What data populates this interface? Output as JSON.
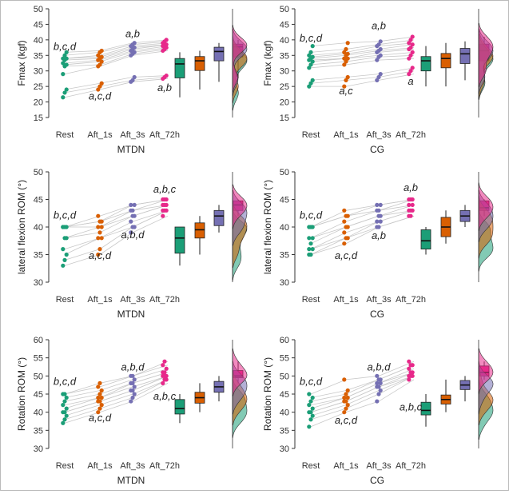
{
  "colors": {
    "Rest": "#1b9e77",
    "Aft_1s": "#d95f02",
    "Aft_3s": "#7570b3",
    "Aft_72h": "#e7298a",
    "pair_line": "#c8c8c8",
    "axis": "#333333"
  },
  "chart_data": [
    {
      "type": "scatter",
      "group": "MTDN",
      "xlabel": "MTDN",
      "ylabel": "Fmax (kgf)",
      "ylim": [
        15,
        50
      ],
      "yticks": [
        15,
        20,
        25,
        30,
        35,
        40,
        45,
        50
      ],
      "categories": [
        "Rest",
        "Aft_1s",
        "Aft_3s",
        "Aft_72h"
      ],
      "annotations": [
        {
          "text": "b,c,d",
          "category": "Rest",
          "y": 36.8
        },
        {
          "text": "a,c,d",
          "category": "Aft_1s",
          "y": 20.8
        },
        {
          "text": "a,b",
          "category": "Aft_3s",
          "y": 40.8
        },
        {
          "text": "a,b",
          "category": "Aft_72h",
          "y": 23.5
        }
      ],
      "series": [
        {
          "name": "Rest",
          "values": [
            21.5,
            23,
            24,
            29,
            31.5,
            32,
            32.5,
            33.5,
            34,
            34,
            35,
            36
          ]
        },
        {
          "name": "Aft_1s",
          "values": [
            24,
            25,
            26,
            31.5,
            32,
            33,
            33.5,
            34,
            34.5,
            35,
            36,
            36.5
          ]
        },
        {
          "name": "Aft_3s",
          "values": [
            26.5,
            27,
            28,
            35,
            35.5,
            36,
            36.5,
            37,
            37.5,
            38,
            38.5,
            39
          ]
        },
        {
          "name": "Aft_72h",
          "values": [
            27.5,
            28,
            28.5,
            36.5,
            37,
            37.5,
            38,
            38.5,
            38.5,
            39,
            39.5,
            40
          ]
        }
      ]
    },
    {
      "type": "scatter",
      "group": "CG",
      "xlabel": "CG",
      "ylabel": "Fmax (kgf)",
      "ylim": [
        15,
        50
      ],
      "yticks": [
        15,
        20,
        25,
        30,
        35,
        40,
        45,
        50
      ],
      "categories": [
        "Rest",
        "Aft_1s",
        "Aft_3s",
        "Aft_72h"
      ],
      "annotations": [
        {
          "text": "b,c,d",
          "category": "Rest",
          "y": 39.5
        },
        {
          "text": "a,c",
          "category": "Aft_1s",
          "y": 22.5
        },
        {
          "text": "a,b",
          "category": "Aft_3s",
          "y": 43.5
        },
        {
          "text": "a",
          "category": "Aft_72h",
          "y": 25.5
        }
      ],
      "series": [
        {
          "name": "Rest",
          "values": [
            25,
            26,
            27,
            31,
            32,
            33,
            33.5,
            34,
            34.5,
            35,
            36,
            38
          ]
        },
        {
          "name": "Aft_1s",
          "values": [
            25,
            27,
            28,
            32,
            33,
            34,
            34,
            35,
            35.5,
            36,
            37,
            39
          ]
        },
        {
          "name": "Aft_3s",
          "values": [
            27,
            28,
            29,
            33.5,
            34.5,
            35,
            36,
            36.5,
            37,
            38,
            38.5,
            39.5
          ]
        },
        {
          "name": "Aft_72h",
          "values": [
            29,
            30,
            31,
            34,
            35,
            36,
            37,
            37.5,
            38.5,
            39,
            40,
            41
          ]
        }
      ]
    },
    {
      "type": "scatter",
      "group": "MTDN",
      "xlabel": "MTDN",
      "ylabel": "lateral flexion ROM (°)",
      "ylim": [
        30,
        50
      ],
      "yticks": [
        30,
        35,
        40,
        45,
        50
      ],
      "categories": [
        "Rest",
        "Aft_1s",
        "Aft_3s",
        "Aft_72h"
      ],
      "annotations": [
        {
          "text": "b,c,d",
          "category": "Rest",
          "y": 41.5
        },
        {
          "text": "a,c,d",
          "category": "Aft_1s",
          "y": 34.2
        },
        {
          "text": "a,b,d",
          "category": "Aft_3s",
          "y": 38
        },
        {
          "text": "a,b,c",
          "category": "Aft_72h",
          "y": 46.2
        }
      ],
      "series": [
        {
          "name": "Rest",
          "values": [
            33,
            34,
            35,
            36,
            38,
            38,
            40,
            40,
            40,
            40
          ]
        },
        {
          "name": "Aft_1s",
          "values": [
            35,
            36,
            38,
            38,
            39,
            40,
            40,
            41,
            41,
            42
          ]
        },
        {
          "name": "Aft_3s",
          "values": [
            39,
            40,
            40,
            41,
            42,
            42,
            43,
            43,
            44,
            44
          ]
        },
        {
          "name": "Aft_72h",
          "values": [
            42,
            43,
            43,
            43,
            44,
            44,
            44,
            45,
            45,
            45
          ]
        }
      ]
    },
    {
      "type": "scatter",
      "group": "CG",
      "xlabel": "CG",
      "ylabel": "lateral flexion ROM (°)",
      "ylim": [
        30,
        50
      ],
      "yticks": [
        30,
        35,
        40,
        45,
        50
      ],
      "categories": [
        "Rest",
        "Aft_1s",
        "Aft_3s",
        "Aft_72h"
      ],
      "annotations": [
        {
          "text": "b,c,d",
          "category": "Rest",
          "y": 41.5
        },
        {
          "text": "a,c,d",
          "category": "Aft_1s",
          "y": 34.2
        },
        {
          "text": "a,b",
          "category": "Aft_3s",
          "y": 37.8
        },
        {
          "text": "a,b",
          "category": "Aft_72h",
          "y": 46.5
        }
      ],
      "series": [
        {
          "name": "Rest",
          "values": [
            35,
            35,
            36,
            36,
            37,
            38,
            38,
            40,
            40,
            40
          ]
        },
        {
          "name": "Aft_1s",
          "values": [
            37,
            38,
            38,
            39,
            40,
            40,
            41,
            42,
            42,
            43
          ]
        },
        {
          "name": "Aft_3s",
          "values": [
            40,
            40,
            41,
            41,
            42,
            42,
            43,
            43,
            44,
            44
          ]
        },
        {
          "name": "Aft_72h",
          "values": [
            42,
            42,
            43,
            43,
            43,
            44,
            44,
            45,
            45,
            45
          ]
        }
      ]
    },
    {
      "type": "scatter",
      "group": "MTDN",
      "xlabel": "MTDN",
      "ylabel": "Rotation ROM (°)",
      "ylim": [
        30,
        60
      ],
      "yticks": [
        30,
        35,
        40,
        45,
        50,
        55,
        60
      ],
      "categories": [
        "Rest",
        "Aft_1s",
        "Aft_3s",
        "Aft_72h"
      ],
      "annotations": [
        {
          "text": "b,c,d",
          "category": "Rest",
          "y": 47.5
        },
        {
          "text": "a,c,d",
          "category": "Aft_1s",
          "y": 37.5
        },
        {
          "text": "a,b,d",
          "category": "Aft_3s",
          "y": 51.5
        },
        {
          "text": "a,b,c",
          "category": "Aft_72h",
          "y": 43.5
        }
      ],
      "series": [
        {
          "name": "Rest",
          "values": [
            37,
            38,
            39,
            40,
            40,
            41,
            42,
            43,
            44,
            45,
            45
          ]
        },
        {
          "name": "Aft_1s",
          "values": [
            40,
            41,
            42,
            43,
            43,
            44,
            44,
            45,
            46,
            47,
            48
          ]
        },
        {
          "name": "Aft_3s",
          "values": [
            43,
            44,
            45,
            46,
            46,
            47,
            48,
            48,
            49,
            50,
            50
          ]
        },
        {
          "name": "Aft_72h",
          "values": [
            48,
            49,
            49,
            50,
            50,
            50,
            51,
            51,
            52,
            53,
            54
          ]
        }
      ]
    },
    {
      "type": "scatter",
      "group": "CG",
      "xlabel": "CG",
      "ylabel": "Rotation ROM (°)",
      "ylim": [
        30,
        60
      ],
      "yticks": [
        30,
        35,
        40,
        45,
        50,
        55,
        60
      ],
      "categories": [
        "Rest",
        "Aft_1s",
        "Aft_3s",
        "Aft_72h"
      ],
      "annotations": [
        {
          "text": "b,c,d",
          "category": "Rest",
          "y": 47.5
        },
        {
          "text": "a,c,d",
          "category": "Aft_1s",
          "y": 36.8
        },
        {
          "text": "a,b,d",
          "category": "Aft_3s",
          "y": 51.5
        },
        {
          "text": "a,b,c",
          "category": "Aft_72h",
          "y": 40.5
        }
      ],
      "series": [
        {
          "name": "Rest",
          "values": [
            36,
            38,
            39,
            40,
            40,
            41,
            42,
            43,
            44,
            45
          ]
        },
        {
          "name": "Aft_1s",
          "values": [
            40,
            41,
            42,
            43,
            43,
            44,
            44,
            45,
            46,
            49
          ]
        },
        {
          "name": "Aft_3s",
          "values": [
            43,
            45,
            46,
            47,
            47,
            48,
            48,
            49,
            49,
            50
          ]
        },
        {
          "name": "Aft_72h",
          "values": [
            49,
            50,
            50,
            50,
            51,
            51,
            52,
            53,
            53,
            54
          ]
        }
      ]
    }
  ]
}
